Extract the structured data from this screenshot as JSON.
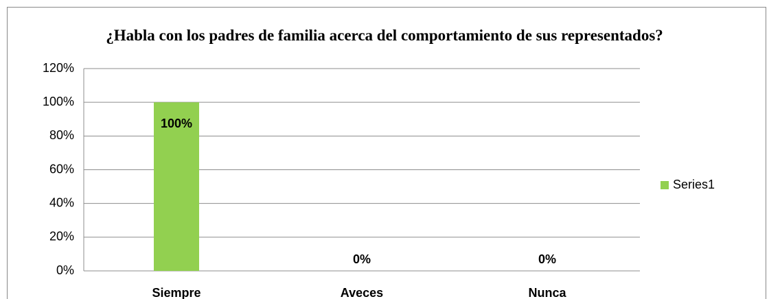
{
  "chart_data": {
    "type": "bar",
    "title": "¿Habla con los padres de familia acerca del comportamiento de sus representados?",
    "categories": [
      "Siempre",
      "Aveces",
      "Nunca"
    ],
    "series": [
      {
        "name": "Series1",
        "color": "#92d050",
        "values": [
          100,
          0,
          0
        ],
        "value_labels": [
          "100%",
          "0%",
          "0%"
        ]
      }
    ],
    "ylim": [
      0,
      120
    ],
    "yticks": [
      {
        "value": 0,
        "label": "0%"
      },
      {
        "value": 20,
        "label": "20%"
      },
      {
        "value": 40,
        "label": "40%"
      },
      {
        "value": 60,
        "label": "60%"
      },
      {
        "value": 80,
        "label": "80%"
      },
      {
        "value": 100,
        "label": "100%"
      },
      {
        "value": 120,
        "label": "120%"
      }
    ],
    "grid": true,
    "legend": "right"
  }
}
